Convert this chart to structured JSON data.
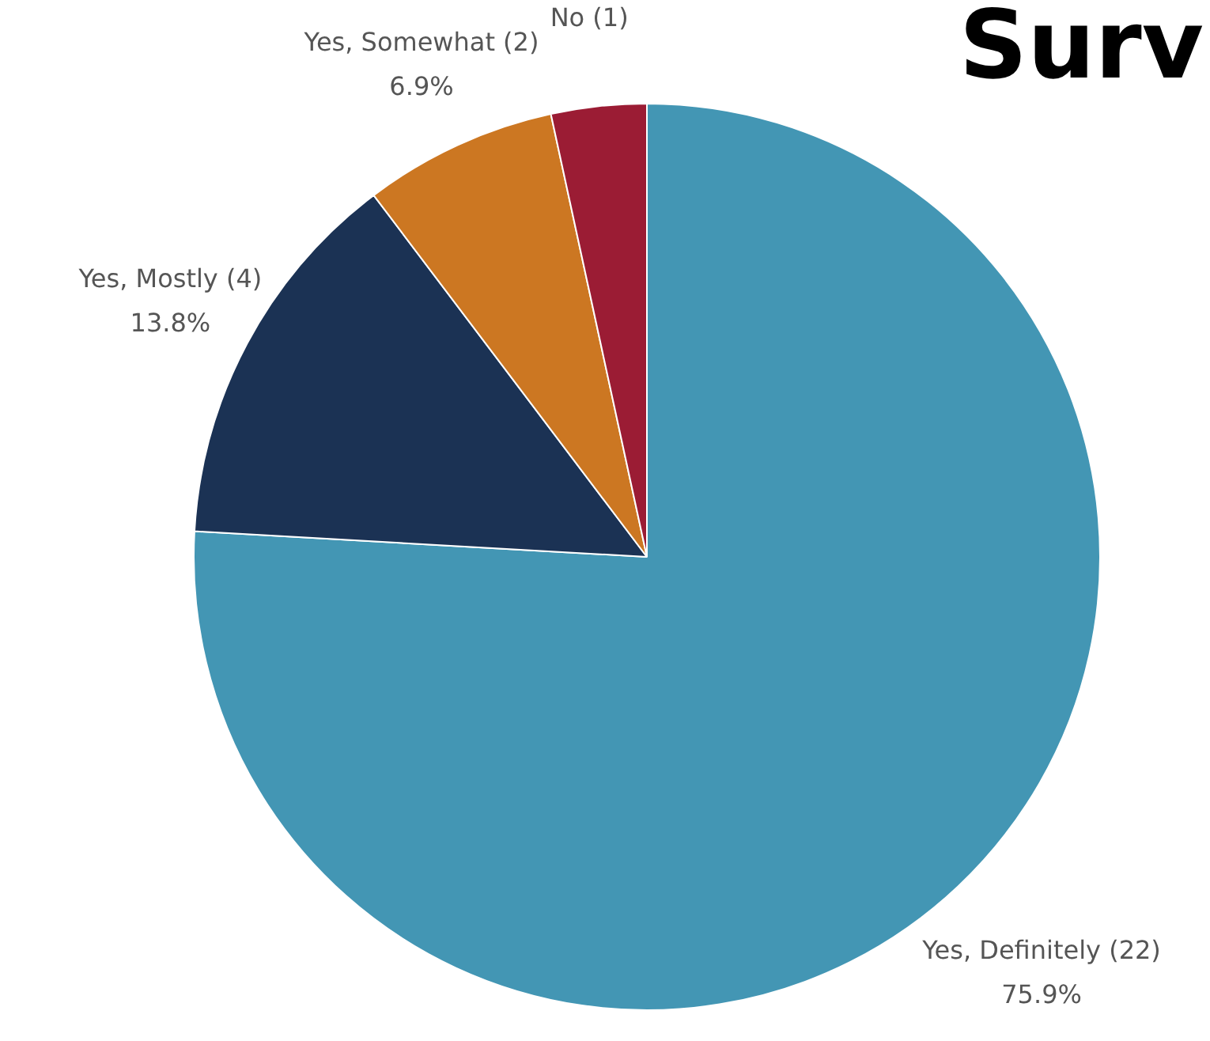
{
  "chart_data": {
    "type": "pie",
    "title": "Surv",
    "categories": [
      "Yes, Definitely (22)",
      "Yes, Mostly (4)",
      "Yes, Somewhat (2)",
      "No (1)"
    ],
    "values": [
      75.9,
      13.8,
      6.9,
      3.4
    ],
    "value_labels": [
      "75.9%",
      "13.8%",
      "6.9%",
      null
    ],
    "colors": [
      "#4396b4",
      "#1b3254",
      "#cc7722",
      "#9b1c34"
    ],
    "legend": false
  }
}
